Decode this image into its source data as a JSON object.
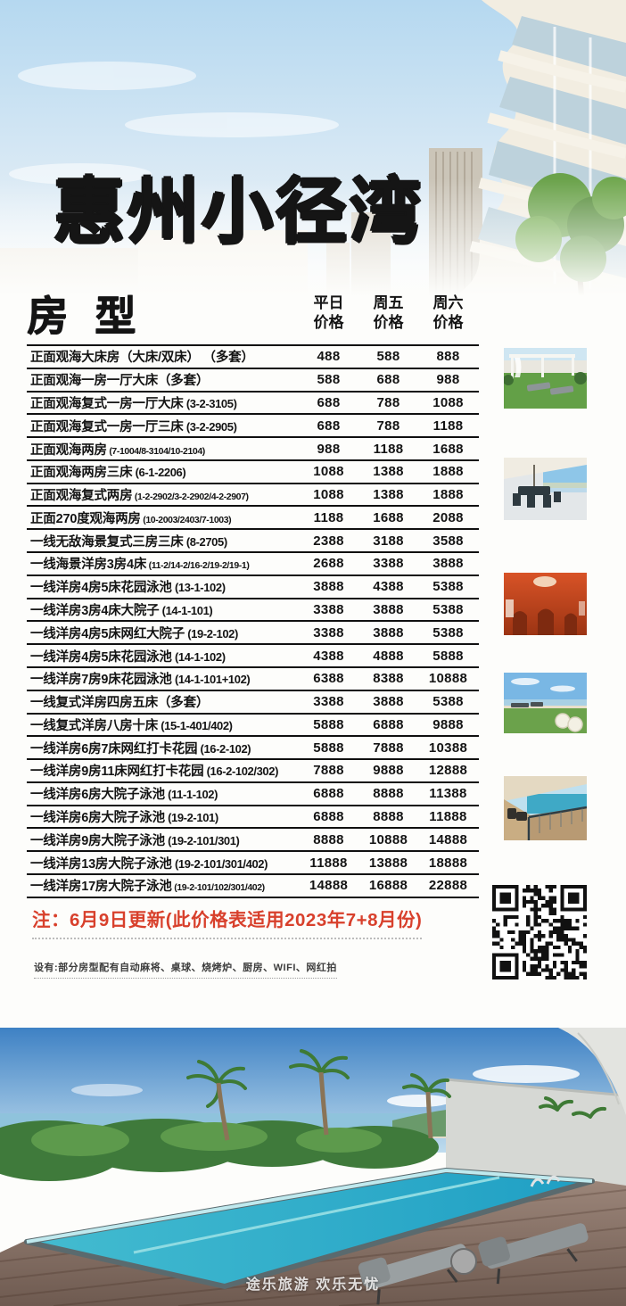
{
  "title": "惠州小径湾",
  "table": {
    "header": "房型",
    "columns": [
      {
        "line1": "平日",
        "line2": "价格"
      },
      {
        "line1": "周五",
        "line2": "价格"
      },
      {
        "line1": "周六",
        "line2": "价格"
      }
    ],
    "rows": [
      {
        "name": "正面观海大床房（大床/双床） （多套）",
        "code": "",
        "prices": [
          "488",
          "588",
          "888"
        ]
      },
      {
        "name": "正面观海一房一厅大床（多套）",
        "code": "",
        "prices": [
          "588",
          "688",
          "988"
        ]
      },
      {
        "name": "正面观海复式一房一厅大床",
        "code": "(3-2-3105)",
        "prices": [
          "688",
          "788",
          "1088"
        ]
      },
      {
        "name": "正面观海复式一房一厅三床",
        "code": "(3-2-2905)",
        "prices": [
          "688",
          "788",
          "1188"
        ]
      },
      {
        "name": "正面观海两房",
        "code": "(7-1004/8-3104/10-2104)",
        "prices": [
          "988",
          "1188",
          "1688"
        ]
      },
      {
        "name": "正面观海两房三床",
        "code": "(6-1-2206)",
        "prices": [
          "1088",
          "1388",
          "1888"
        ]
      },
      {
        "name": "正面观海复式两房",
        "code": "(1-2-2902/3-2-2902/4-2-2907)",
        "prices": [
          "1088",
          "1388",
          "1888"
        ]
      },
      {
        "name": "正面270度观海两房",
        "code": "(10-2003/2403/7-1003)",
        "prices": [
          "1188",
          "1688",
          "2088"
        ]
      },
      {
        "name": "一线无敌海景复式三房三床",
        "code": "(8-2705)",
        "prices": [
          "2388",
          "3188",
          "3588"
        ]
      },
      {
        "name": "一线海景洋房3房4床",
        "code": "(11-2/14-2/16-2/19-2/19-1)",
        "prices": [
          "2688",
          "3388",
          "3888"
        ]
      },
      {
        "name": "一线洋房4房5床花园泳池",
        "code": "(13-1-102)",
        "prices": [
          "3888",
          "4388",
          "5388"
        ]
      },
      {
        "name": "一线洋房3房4床大院子",
        "code": "(14-1-101)",
        "prices": [
          "3388",
          "3888",
          "5388"
        ]
      },
      {
        "name": "一线洋房4房5床网红大院子",
        "code": "(19-2-102)",
        "prices": [
          "3388",
          "3888",
          "5388"
        ]
      },
      {
        "name": "一线洋房4房5床花园泳池",
        "code": "(14-1-102)",
        "prices": [
          "4388",
          "4888",
          "5888"
        ]
      },
      {
        "name": "一线洋房7房9床花园泳池",
        "code": "(14-1-101+102)",
        "prices": [
          "6388",
          "8388",
          "10888"
        ]
      },
      {
        "name": "一线复式洋房四房五床（多套）",
        "code": "",
        "prices": [
          "3388",
          "3888",
          "5388"
        ]
      },
      {
        "name": "一线复式洋房八房十床",
        "code": "(15-1-401/402)",
        "prices": [
          "5888",
          "6888",
          "9888"
        ]
      },
      {
        "name": "一线洋房6房7床网红打卡花园",
        "code": "(16-2-102)",
        "prices": [
          "5888",
          "7888",
          "10388"
        ]
      },
      {
        "name": "一线洋房9房11床网红打卡花园",
        "code": "(16-2-102/302)",
        "prices": [
          "7888",
          "9888",
          "12888"
        ]
      },
      {
        "name": "一线洋房6房大院子泳池",
        "code": "(11-1-102)",
        "prices": [
          "6888",
          "8888",
          "11388"
        ]
      },
      {
        "name": "一线洋房6房大院子泳池",
        "code": "(19-2-101)",
        "prices": [
          "6888",
          "8888",
          "11888"
        ]
      },
      {
        "name": "一线洋房9房大院子泳池",
        "code": "(19-2-101/301)",
        "prices": [
          "8888",
          "10888",
          "14888"
        ]
      },
      {
        "name": "一线洋房13房大院子泳池",
        "code": "(19-2-101/301/402)",
        "prices": [
          "11888",
          "13888",
          "18888"
        ]
      },
      {
        "name": "一线洋房17房大院子泳池",
        "code": "(19-2-101/102/301/402)",
        "prices": [
          "14888",
          "16888",
          "22888"
        ]
      }
    ]
  },
  "notes": {
    "update": "注：6月9日更新(此价格表适用2023年7+8月份)",
    "amenities": "设有:部分房型配有自动麻将、桌球、烧烤炉、厨房、WIFI、网红拍"
  },
  "watermark": "途乐旅游  欢乐无忧",
  "photos": {
    "hero": "resort-building-exterior",
    "thumb1": "garden-pergola",
    "thumb2": "sea-view-terrace",
    "thumb3": "red-interior-room",
    "thumb4": "seaside-lawn",
    "thumb5": "sea-view-balcony",
    "bottom": "beachfront-pool"
  },
  "colors": {
    "accent_red": "#d8402c",
    "table_line": "#101010",
    "title_black": "#151515"
  }
}
